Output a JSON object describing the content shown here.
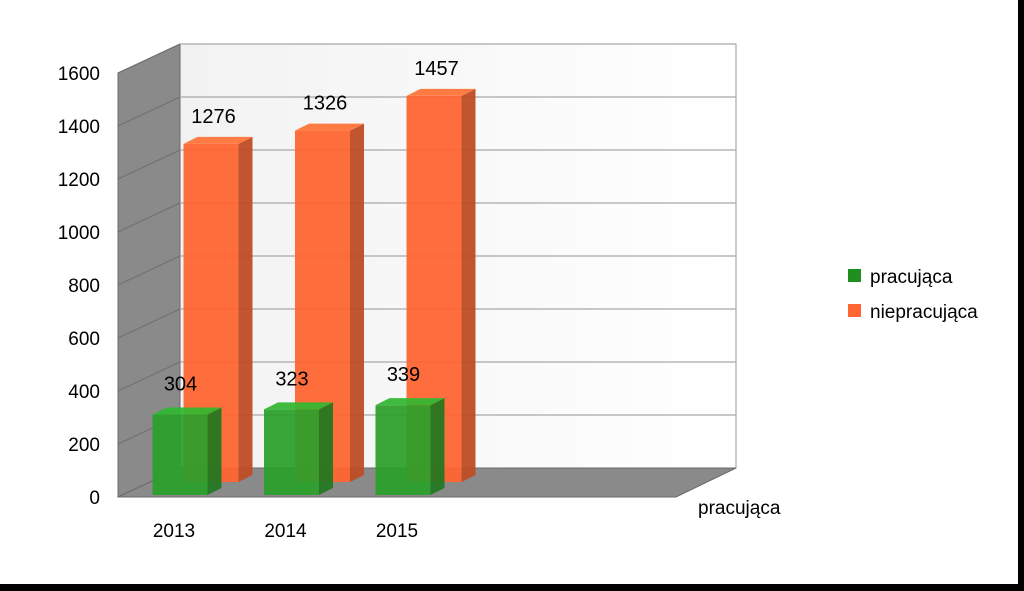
{
  "chart_data": {
    "type": "bar",
    "title": "",
    "xlabel": "",
    "ylabel": "",
    "categories": [
      "2013",
      "2014",
      "2015"
    ],
    "series": [
      {
        "name": "pracująca",
        "values": [
          304,
          323,
          339
        ],
        "color": "#1f8f1f"
      },
      {
        "name": "niepracująca",
        "values": [
          1276,
          1326,
          1457
        ],
        "color": "#ff6633"
      }
    ],
    "ylim": [
      0,
      1600
    ],
    "yticks": [
      "0",
      "200",
      "400",
      "600",
      "800",
      "1000",
      "1200",
      "1400",
      "1600"
    ],
    "depth_axis_label": "pracująca",
    "grid": true,
    "legend": "right",
    "style": "3d"
  }
}
